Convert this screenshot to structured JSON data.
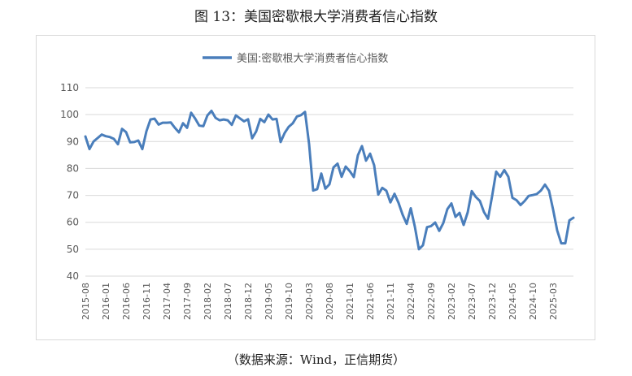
{
  "title": "图 13：美国密歇根大学消费者信心指数",
  "source": "（数据来源：Wind，正信期货）",
  "colors": {
    "line": "#4a7ebb",
    "grid": "#d9d9d9",
    "text": "#595959"
  },
  "chart_data": {
    "type": "line",
    "title": "",
    "xlabel": "",
    "ylabel": "",
    "ylim": [
      40,
      110
    ],
    "yticks": [
      "40",
      "50",
      "60",
      "70",
      "80",
      "90",
      "100",
      "110"
    ],
    "grid": "horizontal",
    "legend": "top",
    "xtick_labels": [
      "2015-08",
      "2016-01",
      "2016-06",
      "2016-11",
      "2017-04",
      "2017-09",
      "2018-02",
      "2018-07",
      "2018-12",
      "2019-05",
      "2019-10",
      "2020-03",
      "2020-08",
      "2021-01",
      "2021-06",
      "2021-11",
      "2022-04",
      "2022-09",
      "2023-02",
      "2023-07",
      "2023-12",
      "2024-05",
      "2024-10",
      "2025-03"
    ],
    "series": [
      {
        "name": "美国:密歇根大学消费者信心指数",
        "start": "2015-08",
        "frequency": "monthly",
        "values": [
          91.9,
          87.2,
          90.0,
          91.3,
          92.6,
          92.0,
          91.7,
          91.0,
          89.0,
          94.7,
          93.5,
          89.7,
          89.8,
          90.4,
          87.2,
          93.8,
          98.2,
          98.5,
          96.3,
          97.0,
          97.0,
          97.1,
          95.1,
          93.4,
          96.8,
          95.1,
          100.7,
          98.5,
          95.9,
          95.7,
          99.7,
          101.4,
          98.8,
          97.9,
          98.2,
          97.9,
          96.2,
          99.7,
          98.6,
          97.5,
          98.3,
          91.2,
          93.8,
          98.4,
          97.2,
          100.0,
          98.2,
          98.4,
          89.8,
          93.2,
          95.5,
          96.8,
          99.3,
          99.8,
          101.0,
          89.1,
          71.8,
          72.3,
          78.1,
          72.5,
          74.1,
          80.4,
          81.8,
          76.9,
          80.7,
          79.0,
          76.8,
          84.9,
          88.3,
          82.9,
          85.5,
          81.2,
          70.3,
          72.8,
          71.7,
          67.4,
          70.6,
          67.2,
          62.8,
          59.4,
          65.2,
          58.4,
          50.0,
          51.5,
          58.2,
          58.6,
          59.9,
          56.8,
          59.7,
          64.9,
          67.0,
          62.0,
          63.5,
          59.0,
          63.7,
          71.6,
          69.4,
          67.9,
          63.8,
          61.3,
          69.7,
          78.8,
          76.9,
          79.4,
          76.9,
          69.1,
          68.2,
          66.4,
          67.9,
          69.8,
          70.1,
          70.5,
          71.8,
          74.0,
          71.7,
          64.7,
          57.0,
          52.2,
          52.2,
          60.7,
          61.7
        ]
      }
    ]
  }
}
